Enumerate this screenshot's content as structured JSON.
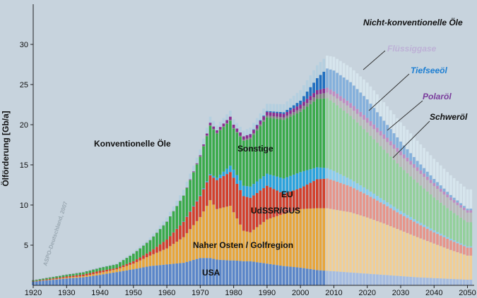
{
  "chart_data": {
    "type": "area",
    "ylabel": "Ölförderung [Gb/a]",
    "xlabel": "",
    "xlim": [
      1920,
      2052
    ],
    "ylim": [
      0,
      35
    ],
    "x_ticks": [
      "1920",
      "1930",
      "1940",
      "1950",
      "1960",
      "1970",
      "1980",
      "1990",
      "2000",
      "2010",
      "2020",
      "2030",
      "2040",
      "2050"
    ],
    "y_ticks": [
      "5",
      "10",
      "15",
      "20",
      "25",
      "30"
    ],
    "history_end_year": 2007,
    "watermark": "ASPO-Deutschland, 2007",
    "annotations": {
      "konventionell": "Konventionelle Öle",
      "nicht_konventionell": "Nicht-konventionelle Öle",
      "fluessiggase": "Flüssiggase",
      "tiefseeoel": "Tiefseeöl",
      "polaroel": "Polaröl",
      "schweroel": "Schweröl",
      "sonstige": "Sonstige",
      "eu": "EU",
      "udssr": "UdSSR/GUS",
      "naher_osten": "Naher Osten / Golfregion",
      "usa": "USA"
    },
    "series_order": [
      "USA",
      "Naher Osten / Golfregion",
      "UdSSR/GUS",
      "EU",
      "Sonstige",
      "Schweröl",
      "Polaröl",
      "Tiefseeöl",
      "Flüssiggase"
    ],
    "colors": {
      "USA": "#5b86c9",
      "Naher Osten / Golfregion": "#e8a53a",
      "UdSSR/GUS": "#d23f2b",
      "EU": "#2aa2dc",
      "Sonstige": "#3aaa4a",
      "Schweröl": "#808080",
      "Polaröl": "#8a2f8f",
      "Tiefseeöl": "#1f6fc0",
      "Flüssiggase": "#b4cfdf",
      "annotation_fluessiggase": "#bdb1d6",
      "annotation_tiefseeoel": "#1e7fd2",
      "annotation_polaroel": "#7a3c9c",
      "background": "#c7d3dd"
    },
    "x": [
      1920,
      1925,
      1930,
      1935,
      1940,
      1945,
      1950,
      1955,
      1960,
      1965,
      1970,
      1973,
      1975,
      1979,
      1980,
      1983,
      1985,
      1990,
      1995,
      2000,
      2005,
      2008,
      2010,
      2015,
      2020,
      2025,
      2030,
      2035,
      2040,
      2045,
      2050
    ],
    "series": [
      {
        "name": "USA",
        "values": [
          0.45,
          0.65,
          0.85,
          1.0,
          1.3,
          1.65,
          2.0,
          2.4,
          2.6,
          2.8,
          3.4,
          3.4,
          3.2,
          3.1,
          3.1,
          3.0,
          3.0,
          2.7,
          2.4,
          2.2,
          1.9,
          1.8,
          1.75,
          1.6,
          1.45,
          1.3,
          1.15,
          1.0,
          0.9,
          0.8,
          0.7
        ]
      },
      {
        "name": "Naher Osten / Golfregion",
        "values": [
          0.0,
          0.05,
          0.1,
          0.15,
          0.25,
          0.35,
          0.7,
          1.3,
          2.0,
          3.2,
          5.1,
          7.2,
          6.3,
          6.8,
          6.0,
          3.8,
          3.6,
          5.5,
          6.5,
          7.3,
          7.7,
          7.8,
          7.7,
          7.5,
          7.0,
          6.4,
          5.7,
          5.0,
          4.3,
          3.6,
          3.0
        ]
      },
      {
        "name": "UdSSR/GUS",
        "values": [
          0.05,
          0.1,
          0.15,
          0.2,
          0.25,
          0.15,
          0.3,
          0.5,
          1.1,
          1.9,
          2.6,
          3.1,
          3.6,
          4.2,
          4.3,
          4.3,
          4.3,
          4.2,
          2.5,
          2.6,
          3.6,
          3.7,
          3.6,
          3.2,
          2.8,
          2.4,
          2.0,
          1.7,
          1.4,
          1.2,
          1.0
        ]
      },
      {
        "name": "EU",
        "values": [
          0.0,
          0.0,
          0.0,
          0.0,
          0.0,
          0.0,
          0.0,
          0.0,
          0.0,
          0.05,
          0.1,
          0.15,
          0.3,
          0.8,
          1.0,
          1.3,
          1.4,
          1.5,
          1.9,
          2.0,
          1.5,
          1.3,
          1.2,
          0.9,
          0.7,
          0.5,
          0.4,
          0.3,
          0.25,
          0.2,
          0.15
        ]
      },
      {
        "name": "Sonstige",
        "values": [
          0.1,
          0.15,
          0.2,
          0.25,
          0.35,
          0.45,
          0.9,
          1.4,
          2.2,
          3.2,
          4.8,
          6.0,
          5.5,
          5.6,
          5.1,
          5.6,
          5.9,
          7.0,
          7.3,
          7.5,
          8.5,
          8.7,
          8.5,
          7.9,
          7.1,
          6.3,
          5.5,
          4.8,
          4.1,
          3.5,
          3.0
        ]
      },
      {
        "name": "Schweröl",
        "values": [
          0.05,
          0.05,
          0.05,
          0.05,
          0.05,
          0.05,
          0.05,
          0.05,
          0.05,
          0.05,
          0.1,
          0.1,
          0.1,
          0.1,
          0.1,
          0.15,
          0.2,
          0.25,
          0.3,
          0.4,
          0.55,
          0.7,
          0.8,
          1.0,
          1.2,
          1.35,
          1.45,
          1.45,
          1.4,
          1.3,
          1.2
        ]
      },
      {
        "name": "Polaröl",
        "values": [
          0.0,
          0.0,
          0.0,
          0.0,
          0.0,
          0.0,
          0.0,
          0.0,
          0.0,
          0.0,
          0.1,
          0.3,
          0.3,
          0.4,
          0.4,
          0.4,
          0.4,
          0.45,
          0.45,
          0.5,
          0.55,
          0.6,
          0.6,
          0.6,
          0.6,
          0.55,
          0.5,
          0.45,
          0.4,
          0.35,
          0.3
        ]
      },
      {
        "name": "Tiefseeöl",
        "values": [
          0.0,
          0.0,
          0.0,
          0.0,
          0.0,
          0.0,
          0.0,
          0.0,
          0.0,
          0.0,
          0.0,
          0.0,
          0.0,
          0.0,
          0.0,
          0.0,
          0.05,
          0.1,
          0.2,
          0.5,
          1.5,
          2.4,
          2.6,
          2.6,
          2.3,
          1.7,
          1.2,
          0.8,
          0.5,
          0.3,
          0.2
        ]
      },
      {
        "name": "Flüssiggase",
        "values": [
          0.0,
          0.0,
          0.05,
          0.05,
          0.1,
          0.1,
          0.2,
          0.3,
          0.5,
          0.7,
          0.7,
          0.75,
          0.6,
          0.75,
          0.7,
          0.7,
          0.8,
          0.9,
          1.0,
          1.3,
          1.6,
          1.6,
          1.7,
          1.85,
          2.1,
          2.3,
          2.4,
          2.5,
          2.5,
          2.45,
          2.4
        ]
      }
    ]
  }
}
